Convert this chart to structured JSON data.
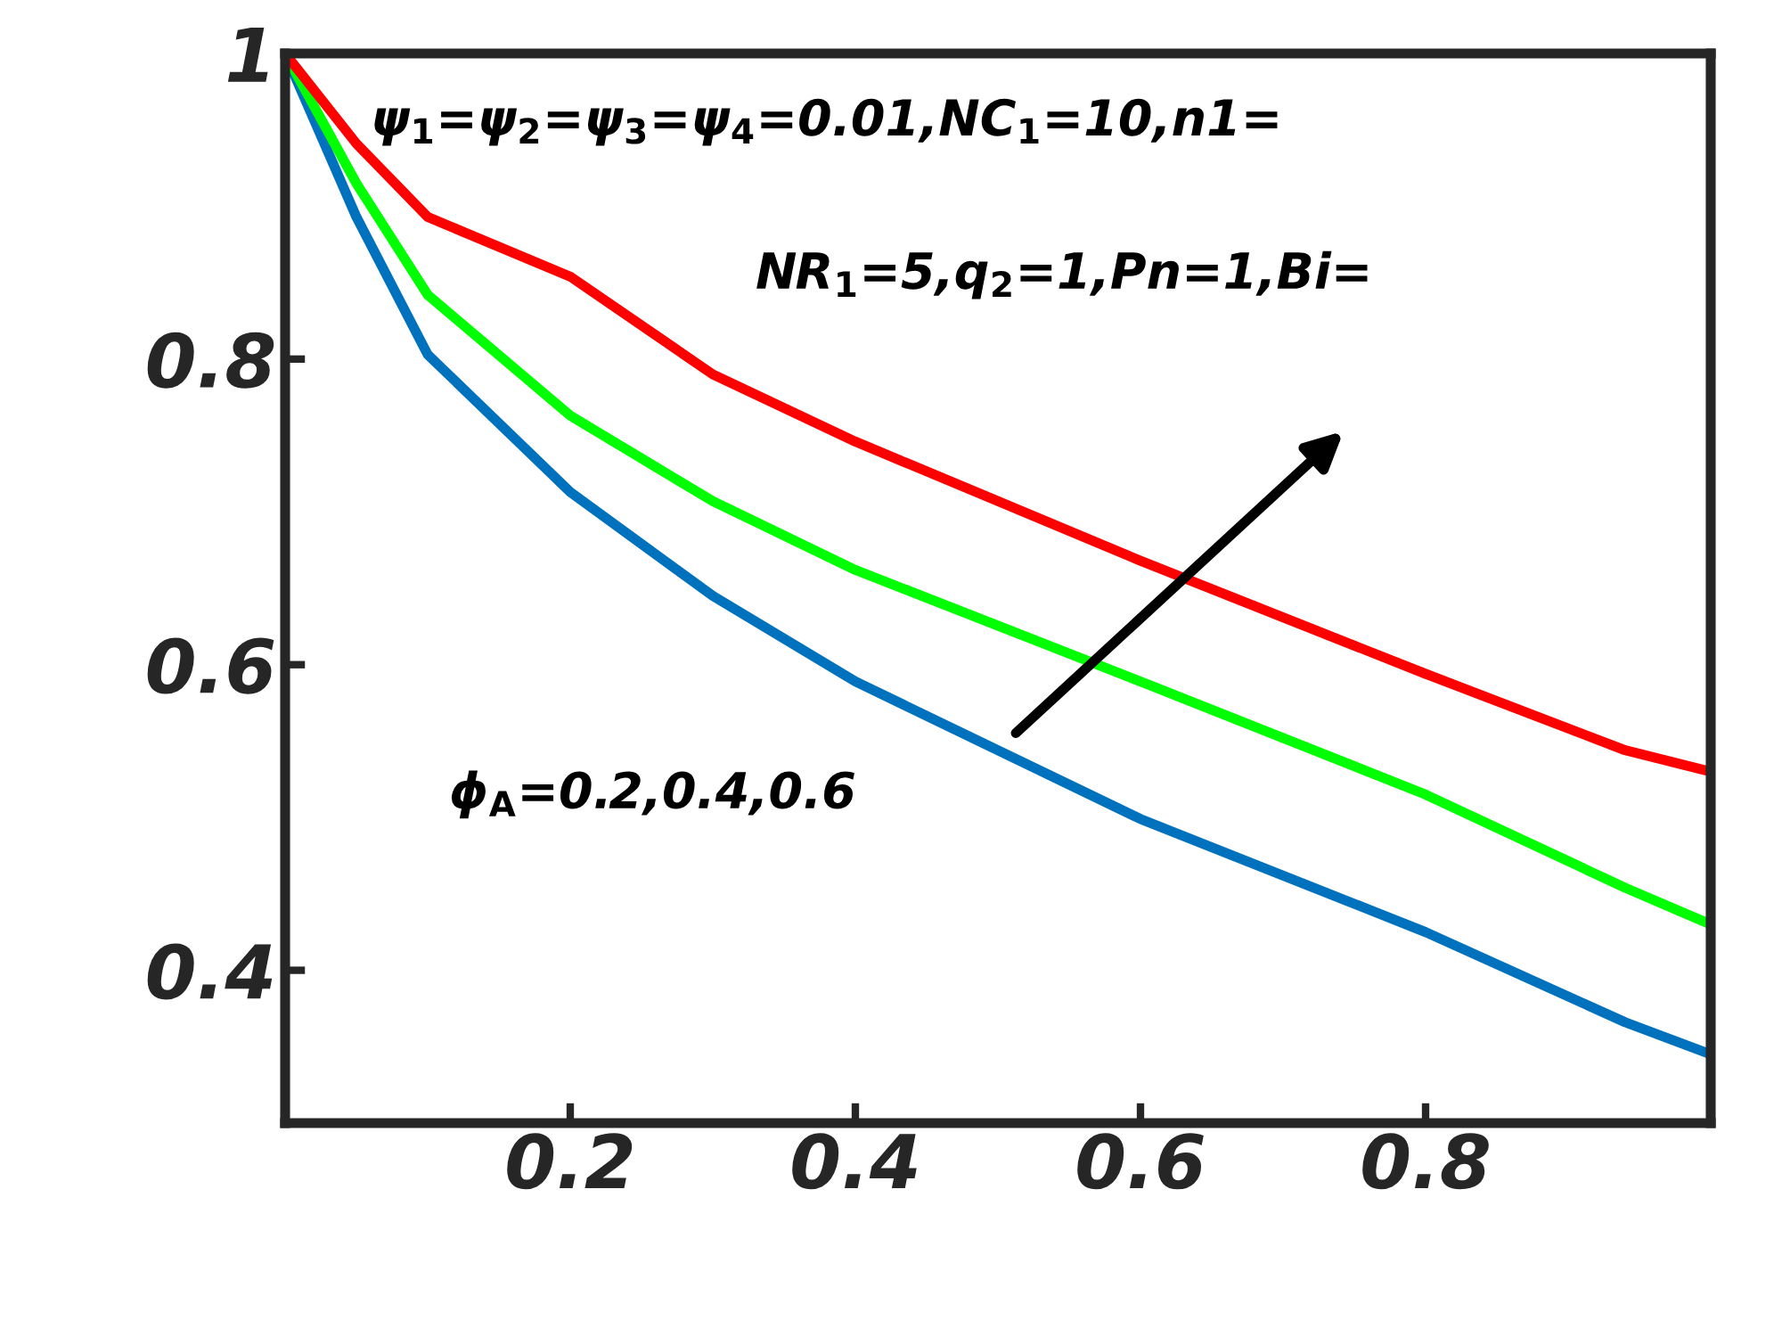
{
  "chart_data": {
    "type": "line",
    "x": [
      0,
      0.05,
      0.1,
      0.2,
      0.3,
      0.4,
      0.6,
      0.8,
      0.94,
      1
    ],
    "series": [
      {
        "color": "#0072bd",
        "values": [
          1,
          0.893,
          0.803,
          0.713,
          0.645,
          0.589,
          0.499,
          0.425,
          0.366,
          0.345
        ]
      },
      {
        "color": "#00ff00",
        "values": [
          1,
          0.915,
          0.842,
          0.763,
          0.707,
          0.662,
          0.589,
          0.515,
          0.454,
          0.43
        ]
      },
      {
        "color": "#ff0000",
        "values": [
          1,
          0.941,
          0.893,
          0.854,
          0.79,
          0.746,
          0.668,
          0.594,
          0.544,
          0.53
        ]
      }
    ],
    "xlim": [
      0,
      1
    ],
    "ylim": [
      0.3,
      1
    ],
    "xticks": [
      0.2,
      0.4,
      0.6,
      0.8
    ],
    "yticks": [
      0.4,
      0.6,
      0.8,
      1
    ],
    "grid": false,
    "legend": false,
    "marker": "none",
    "line_style": "solid",
    "annotations": [
      "ψ$_{1}$=ψ$_{2}$=ψ$_{3}$=ψ$_{4}$=0.01,NC$_{1}$=10,n1=",
      "NR$_{1}$=5,q$_{2}$=1,Pn=1,Bi=",
      "ϕ$_{A}$=0.2,0.4,0.6"
    ]
  }
}
